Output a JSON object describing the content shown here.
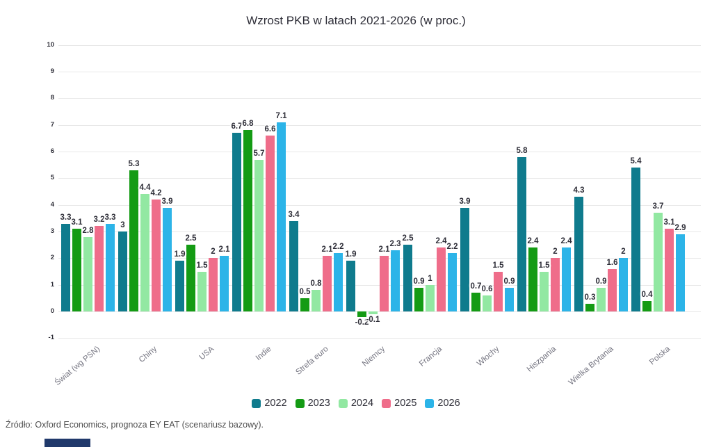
{
  "source_note": "Źródło: Oxford Economics, prognoza EY EAT (scenariusz bazowy).",
  "colors": {
    "gridline": "#e7e7e7",
    "title_text": "#2e2e38",
    "category_label": "#747480",
    "accent_bar": "#20396b"
  },
  "chart_data": {
    "type": "bar",
    "title": "Wzrost PKB w latach 2021-2026 (w proc.)",
    "categories": [
      "Świat (wg PSN)",
      "Chiny",
      "USA",
      "Indie",
      "Strefa euro",
      "Niemcy",
      "Francja",
      "Włochy",
      "Hiszpania",
      "Wielka Brytania",
      "Polska"
    ],
    "series": [
      {
        "name": "2022",
        "color": "#0f7b8d",
        "values": [
          3.3,
          3,
          1.9,
          6.7,
          3.4,
          1.9,
          2.5,
          3.9,
          5.8,
          4.3,
          5.4
        ],
        "labels": [
          "3.3",
          "3",
          "1.9",
          "6.7",
          "3.4",
          "1.9",
          "2.5",
          "3.9",
          "5.8",
          "4.3",
          "5.4"
        ]
      },
      {
        "name": "2023",
        "color": "#149b14",
        "values": [
          3.1,
          5.3,
          2.5,
          6.8,
          0.5,
          -0.2,
          0.9,
          0.7,
          2.4,
          0.3,
          0.4
        ],
        "labels": [
          "3.1",
          "5.3",
          "2.5",
          "6.8",
          "0.5",
          "-0.2",
          "0.9",
          "0.7",
          "2.4",
          "0.3",
          "0.4"
        ]
      },
      {
        "name": "2024",
        "color": "#92e8a2",
        "values": [
          2.8,
          4.4,
          1.5,
          5.7,
          0.8,
          -0.1,
          1,
          0.6,
          1.5,
          0.9,
          3.7
        ],
        "labels": [
          "2.8",
          "4.4",
          "1.5",
          "5.7",
          "0.8",
          "-0.1",
          "1",
          "0.6",
          "1.5",
          "0.9",
          "3.7"
        ]
      },
      {
        "name": "2025",
        "color": "#ef6d8a",
        "values": [
          3.2,
          4.2,
          2,
          6.6,
          2.1,
          2.1,
          2.4,
          1.5,
          2,
          1.6,
          3.1
        ],
        "labels": [
          "3.2",
          "4.2",
          "2",
          "6.6",
          "2.1",
          "2.1",
          "2.4",
          "1.5",
          "2",
          "1.6",
          "3.1"
        ]
      },
      {
        "name": "2026",
        "color": "#2cb4e8",
        "values": [
          3.3,
          3.9,
          2.1,
          7.1,
          2.2,
          2.3,
          2.2,
          0.9,
          2.4,
          2,
          2.9
        ],
        "labels": [
          "3.3",
          "3.9",
          "2.1",
          "7.1",
          "2.2",
          "2.3",
          "2.2",
          "0.9",
          "2.4",
          "2",
          "2.9"
        ]
      }
    ],
    "ylim": [
      -1,
      10
    ],
    "yticks": [
      10,
      9,
      8,
      7,
      6,
      5,
      4,
      3,
      2,
      1,
      0,
      -1
    ],
    "grid": true,
    "legend_position": "bottom"
  }
}
